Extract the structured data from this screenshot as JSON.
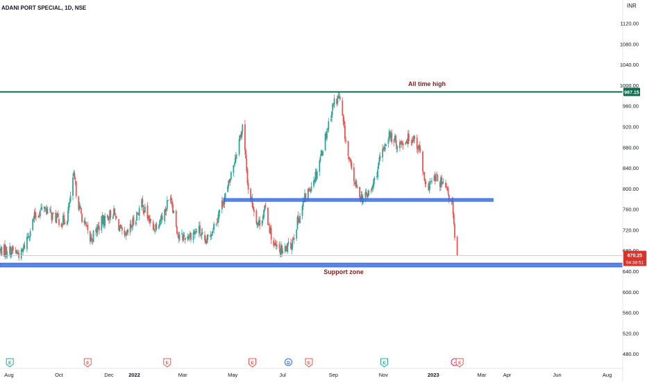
{
  "header": {
    "symbol_title": "ADANI PORT SPECIAL, 1D, NSE",
    "currency": "INR"
  },
  "price_badges": {
    "all_time_high": "987.15",
    "last_price": "670.25",
    "countdown": "04:38:51"
  },
  "annotations": {
    "all_time_high_label": "All time high",
    "support_label": "Support zone"
  },
  "colors": {
    "up": "#26a69a",
    "down": "#ef5350",
    "ath_line": "#0d6b4e",
    "zone": "#3b6fe0",
    "label_text": "#8b1a1a",
    "last_price_badge": "#d9342b"
  },
  "events": [
    {
      "type": "E",
      "label": "E",
      "date": "2021-08-02",
      "color": "#26a69a"
    },
    {
      "type": "E",
      "label": "E",
      "date": "2021-11-05",
      "color": "#ef5350"
    },
    {
      "type": "E",
      "label": "E",
      "date": "2022-02-10",
      "color": "#ef5350"
    },
    {
      "type": "E",
      "label": "E",
      "date": "2022-05-25",
      "color": "#ef5350"
    },
    {
      "type": "D",
      "label": "D",
      "date": "2022-07-08",
      "color": "#2962ff"
    },
    {
      "type": "E",
      "label": "E",
      "date": "2022-08-02",
      "color": "#ef5350"
    },
    {
      "type": "E",
      "label": "E",
      "date": "2022-11-02",
      "color": "#26a69a"
    },
    {
      "type": "S",
      "label": "⚡",
      "date": "2023-01-27",
      "color": "#e91e63"
    },
    {
      "type": "E",
      "label": "E",
      "date": "2023-02-02",
      "color": "#ef5350"
    }
  ],
  "chart_data": {
    "type": "candlestick",
    "title": "ADANI PORT SPECIAL, 1D, NSE",
    "x_ticks": [
      "Aug",
      "Oct",
      "Dec",
      "2022",
      "Mar",
      "May",
      "Jul",
      "Sep",
      "Nov",
      "2023",
      "Mar",
      "Apr",
      "Jun",
      "Aug"
    ],
    "x_range": [
      "2021-07-21",
      "2023-08-20"
    ],
    "y_ticks": [
      "480.00",
      "520.00",
      "560.00",
      "600.00",
      "640.00",
      "680.00",
      "720.00",
      "760.00",
      "800.00",
      "840.00",
      "880.00",
      "920.00",
      "960.00",
      "1000.00",
      "1040.00",
      "1080.00",
      "1120.00"
    ],
    "ylim": [
      452,
      1165
    ],
    "grid": false,
    "levels": [
      {
        "name": "all_time_high",
        "price": 987.15,
        "from": "2021-07-21",
        "to": "2023-08-20"
      },
      {
        "name": "resistance_zone",
        "low": 775,
        "high": 781,
        "from": "2022-04-20",
        "to": "2023-03-15"
      },
      {
        "name": "support_zone",
        "low": 648,
        "high": 656,
        "from": "2021-07-21",
        "to": "2023-08-20"
      }
    ],
    "last_price": 670.25,
    "anchors": [
      [
        "2021-07-21",
        680
      ],
      [
        "2021-08-05",
        680
      ],
      [
        "2021-08-16",
        672
      ],
      [
        "2021-09-01",
        745
      ],
      [
        "2021-09-13",
        765
      ],
      [
        "2021-09-22",
        748
      ],
      [
        "2021-10-05",
        735
      ],
      [
        "2021-10-11",
        745
      ],
      [
        "2021-10-19",
        822
      ],
      [
        "2021-10-26",
        760
      ],
      [
        "2021-11-08",
        700
      ],
      [
        "2021-11-22",
        735
      ],
      [
        "2021-12-06",
        755
      ],
      [
        "2021-12-20",
        700
      ],
      [
        "2022-01-10",
        770
      ],
      [
        "2022-01-24",
        722
      ],
      [
        "2022-02-07",
        755
      ],
      [
        "2022-02-14",
        790
      ],
      [
        "2022-02-24",
        705
      ],
      [
        "2022-03-07",
        708
      ],
      [
        "2022-03-21",
        720
      ],
      [
        "2022-03-28",
        690
      ],
      [
        "2022-04-11",
        740
      ],
      [
        "2022-04-25",
        800
      ],
      [
        "2022-05-03",
        855
      ],
      [
        "2022-05-13",
        920
      ],
      [
        "2022-05-20",
        800
      ],
      [
        "2022-06-01",
        730
      ],
      [
        "2022-06-10",
        760
      ],
      [
        "2022-06-20",
        688
      ],
      [
        "2022-07-01",
        678
      ],
      [
        "2022-07-11",
        690
      ],
      [
        "2022-07-18",
        730
      ],
      [
        "2022-07-28",
        780
      ],
      [
        "2022-08-11",
        830
      ],
      [
        "2022-08-22",
        900
      ],
      [
        "2022-09-01",
        965
      ],
      [
        "2022-09-08",
        978
      ],
      [
        "2022-09-19",
        860
      ],
      [
        "2022-09-29",
        800
      ],
      [
        "2022-10-07",
        780
      ],
      [
        "2022-10-17",
        795
      ],
      [
        "2022-10-27",
        850
      ],
      [
        "2022-11-07",
        905
      ],
      [
        "2022-11-18",
        885
      ],
      [
        "2022-11-29",
        895
      ],
      [
        "2022-12-08",
        900
      ],
      [
        "2022-12-16",
        870
      ],
      [
        "2022-12-22",
        800
      ],
      [
        "2023-01-04",
        820
      ],
      [
        "2023-01-16",
        800
      ],
      [
        "2023-01-24",
        770
      ],
      [
        "2023-01-27",
        700
      ],
      [
        "2023-01-30",
        670.25
      ]
    ]
  }
}
